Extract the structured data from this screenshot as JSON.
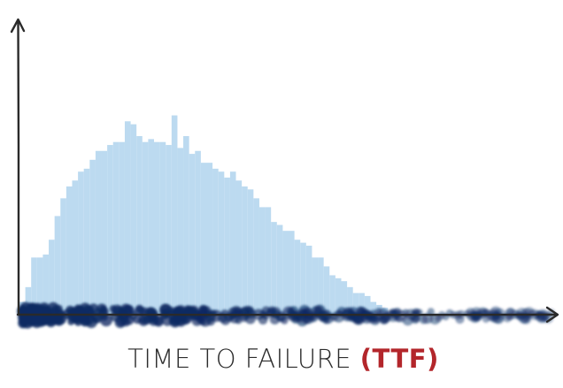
{
  "chart_data": {
    "type": "histogram",
    "xlabel": "TIME TO FAILURE ",
    "xlabel_highlight": "(TTF)",
    "color": "#bcdaf0",
    "point_color": "#0b2a63",
    "bins": [
      0,
      1,
      2,
      3,
      4,
      5,
      6,
      7,
      8,
      9,
      10,
      11,
      12,
      13,
      14,
      15,
      16,
      17,
      18,
      19,
      20,
      21,
      22,
      23,
      24,
      25,
      26,
      27,
      28,
      29,
      30,
      31,
      32,
      33,
      34,
      35,
      36,
      37,
      38,
      39,
      40,
      41,
      42,
      43,
      44,
      45,
      46,
      47,
      48,
      49,
      50,
      51,
      52,
      53,
      54,
      55,
      56,
      57,
      58,
      59,
      60,
      61,
      62,
      63
    ],
    "values": [
      4,
      9,
      19,
      19,
      20,
      25,
      33,
      39,
      43,
      45,
      48,
      49,
      52,
      55,
      55,
      57,
      58,
      58,
      65,
      64,
      60,
      58,
      59,
      58,
      58,
      57,
      67,
      56,
      60,
      54,
      55,
      51,
      51,
      49,
      48,
      46,
      48,
      45,
      43,
      42,
      39,
      36,
      36,
      31,
      30,
      28,
      28,
      25,
      24,
      23,
      19,
      19,
      16,
      13,
      12,
      11,
      9,
      7,
      7,
      6,
      4,
      3,
      2
    ],
    "xlim": [
      0,
      92
    ],
    "ylim": [
      0,
      100
    ]
  }
}
